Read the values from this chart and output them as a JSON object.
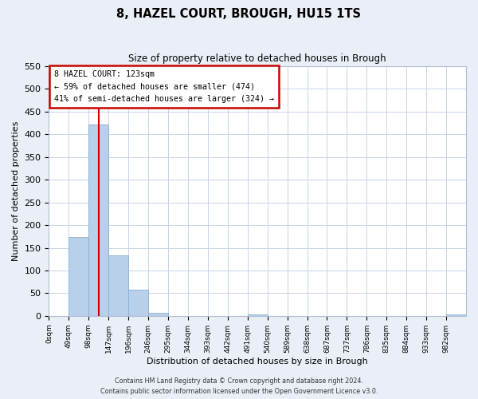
{
  "title": "8, HAZEL COURT, BROUGH, HU15 1TS",
  "subtitle": "Size of property relative to detached houses in Brough",
  "xlabel": "Distribution of detached houses by size in Brough",
  "ylabel": "Number of detached properties",
  "bin_edges": [
    0,
    49,
    98,
    147,
    196,
    245,
    294,
    343,
    392,
    441,
    490,
    539,
    588,
    637,
    686,
    735,
    784,
    833,
    882,
    931,
    980,
    1029
  ],
  "bin_labels": [
    "0sqm",
    "49sqm",
    "98sqm",
    "147sqm",
    "196sqm",
    "246sqm",
    "295sqm",
    "344sqm",
    "393sqm",
    "442sqm",
    "491sqm",
    "540sqm",
    "589sqm",
    "638sqm",
    "687sqm",
    "737sqm",
    "786sqm",
    "835sqm",
    "884sqm",
    "933sqm",
    "982sqm"
  ],
  "counts": [
    0,
    174,
    421,
    134,
    57,
    7,
    0,
    0,
    0,
    0,
    3,
    0,
    0,
    0,
    0,
    0,
    0,
    0,
    0,
    0,
    3
  ],
  "bar_color": "#b8d0ea",
  "bar_edge_color": "#8ab0d4",
  "property_size": 123,
  "vline_color": "#cc0000",
  "annotation_title": "8 HAZEL COURT: 123sqm",
  "annotation_line1": "← 59% of detached houses are smaller (474)",
  "annotation_line2": "41% of semi-detached houses are larger (324) →",
  "annotation_box_color": "#cc0000",
  "ylim": [
    0,
    550
  ],
  "yticks": [
    0,
    50,
    100,
    150,
    200,
    250,
    300,
    350,
    400,
    450,
    500,
    550
  ],
  "footer1": "Contains HM Land Registry data © Crown copyright and database right 2024.",
  "footer2": "Contains public sector information licensed under the Open Government Licence v3.0.",
  "bg_color": "#eaeff7",
  "plot_bg_color": "#ffffff",
  "grid_color": "#c8d4e8"
}
